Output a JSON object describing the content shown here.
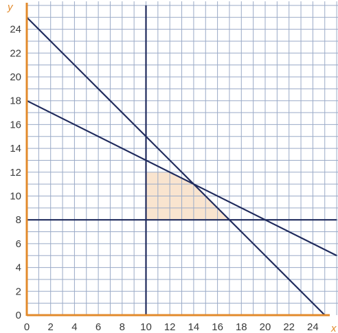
{
  "chart_data": {
    "type": "line",
    "xlabel": "x",
    "ylabel": "y",
    "xlim": [
      0,
      26
    ],
    "ylim": [
      0,
      26
    ],
    "x_ticks": [
      0,
      2,
      4,
      6,
      8,
      10,
      12,
      14,
      16,
      18,
      20,
      22,
      24
    ],
    "y_ticks": [
      0,
      2,
      4,
      6,
      8,
      10,
      12,
      14,
      16,
      18,
      20,
      22,
      24
    ],
    "grid": true,
    "lines": [
      {
        "points": [
          [
            0,
            25
          ],
          [
            25,
            0
          ]
        ]
      },
      {
        "points": [
          [
            0,
            18
          ],
          [
            26,
            5
          ]
        ]
      },
      {
        "points": [
          [
            0,
            8
          ],
          [
            26,
            8
          ]
        ]
      },
      {
        "points": [
          [
            10,
            0
          ],
          [
            10,
            26
          ]
        ]
      }
    ],
    "shaded_region": {
      "vertices": [
        [
          10,
          8
        ],
        [
          17,
          8
        ],
        [
          14,
          11
        ],
        [
          12,
          12
        ],
        [
          10,
          12
        ]
      ]
    },
    "colors": {
      "grid": "#9aaac7",
      "axis": "#e28a2b",
      "line": "#1f2a5c",
      "region_fill": "#f9e4cf",
      "tick_text": "#3a3a3a"
    }
  }
}
